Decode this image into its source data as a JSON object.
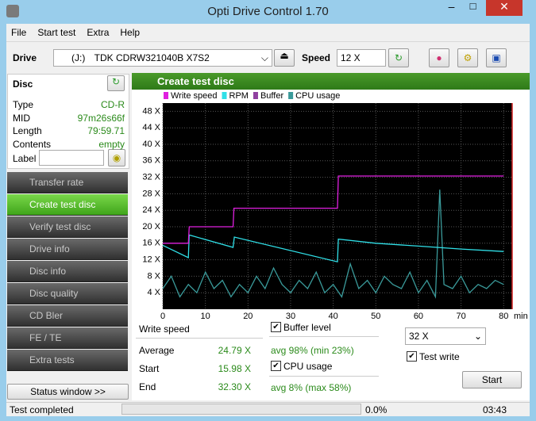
{
  "window": {
    "title": "Opti Drive Control 1.70"
  },
  "menu": [
    "File",
    "Start test",
    "Extra",
    "Help"
  ],
  "toolbar": {
    "drive_label": "Drive",
    "drive_letter": "(J:)",
    "drive": "TDK CDRW321040B X7S2",
    "speed_label": "Speed",
    "speed": "12 X"
  },
  "disc": {
    "title": "Disc",
    "rows": [
      [
        "Type",
        "CD-R"
      ],
      [
        "MID",
        "97m26s66f"
      ],
      [
        "Length",
        "79:59.71"
      ],
      [
        "Contents",
        "empty"
      ]
    ],
    "label": "Label"
  },
  "nav": [
    "Transfer rate",
    "Create test disc",
    "Verify test disc",
    "Drive info",
    "Disc info",
    "Disc quality",
    "CD Bler",
    "FE / TE",
    "Extra tests"
  ],
  "status_window": "Status window >>",
  "panel": {
    "title": "Create test disc"
  },
  "chart_data": {
    "type": "line",
    "xlim": [
      0,
      82
    ],
    "ylim": [
      0,
      50
    ],
    "xticks": [
      0,
      10,
      20,
      30,
      40,
      50,
      60,
      70,
      80
    ],
    "x_unit": "min",
    "yticks": [
      {
        "value": 4,
        "label": "4 X"
      },
      {
        "value": 8,
        "label": "8 X"
      },
      {
        "value": 12,
        "label": "12 X"
      },
      {
        "value": 16,
        "label": "16 X"
      },
      {
        "value": 20,
        "label": "20 X"
      },
      {
        "value": 24,
        "label": "24 X"
      },
      {
        "value": 28,
        "label": "28 X"
      },
      {
        "value": 32,
        "label": "32 X"
      },
      {
        "value": 36,
        "label": "36 X"
      },
      {
        "value": 40,
        "label": "40 X"
      },
      {
        "value": 44,
        "label": "44 X"
      },
      {
        "value": 48,
        "label": "48 X"
      }
    ],
    "grid": true,
    "series": [
      {
        "name": "Write speed",
        "color": "#e020e0",
        "x": [
          0,
          6,
          6.2,
          16.5,
          16.7,
          41,
          41.2,
          80
        ],
        "values": [
          16,
          16,
          20,
          20,
          24.5,
          24.5,
          32.3,
          32.3
        ]
      },
      {
        "name": "RPM",
        "color": "#30e0e8",
        "x": [
          0,
          6,
          6.2,
          16.5,
          16.8,
          41,
          41.2,
          50,
          60,
          70,
          80
        ],
        "values": [
          15.5,
          12.5,
          18,
          15,
          17.5,
          11.5,
          17,
          16,
          15.3,
          14.6,
          14
        ]
      },
      {
        "name": "Buffer",
        "color": "#9040a0"
      },
      {
        "name": "CPU usage",
        "color": "#3a9a9a",
        "x": [
          0,
          2,
          4,
          6,
          8,
          10,
          12,
          14,
          16,
          18,
          20,
          22,
          24,
          26,
          28,
          30,
          32,
          34,
          36,
          38,
          40,
          42,
          44,
          46,
          48,
          50,
          52,
          54,
          56,
          58,
          60,
          62,
          64,
          65,
          66,
          68,
          70,
          72,
          74,
          76,
          78,
          80
        ],
        "values": [
          5,
          8,
          3,
          6,
          4,
          9,
          5,
          7,
          3,
          6,
          4,
          8,
          5,
          10,
          6,
          4,
          7,
          5,
          9,
          4,
          6,
          3,
          11,
          5,
          7,
          4,
          8,
          6,
          5,
          9,
          4,
          7,
          3,
          29,
          6,
          5,
          8,
          4,
          6,
          5,
          7,
          6
        ]
      }
    ]
  },
  "stats": {
    "write_speed": "Write speed",
    "rows": [
      [
        "Average",
        "24.79 X"
      ],
      [
        "Start",
        "15.98 X"
      ],
      [
        "End",
        "32.30 X"
      ]
    ],
    "buffer_level": "Buffer level",
    "buffer_avg": "avg 98% (min 23%)",
    "cpu_usage": "CPU usage",
    "cpu_avg": "avg 8% (max 58%)",
    "speed": "32 X",
    "test_write": "Test write",
    "start": "Start"
  },
  "status_bar": {
    "message": "Test completed",
    "progress": "0.0%",
    "time": "03:43"
  }
}
